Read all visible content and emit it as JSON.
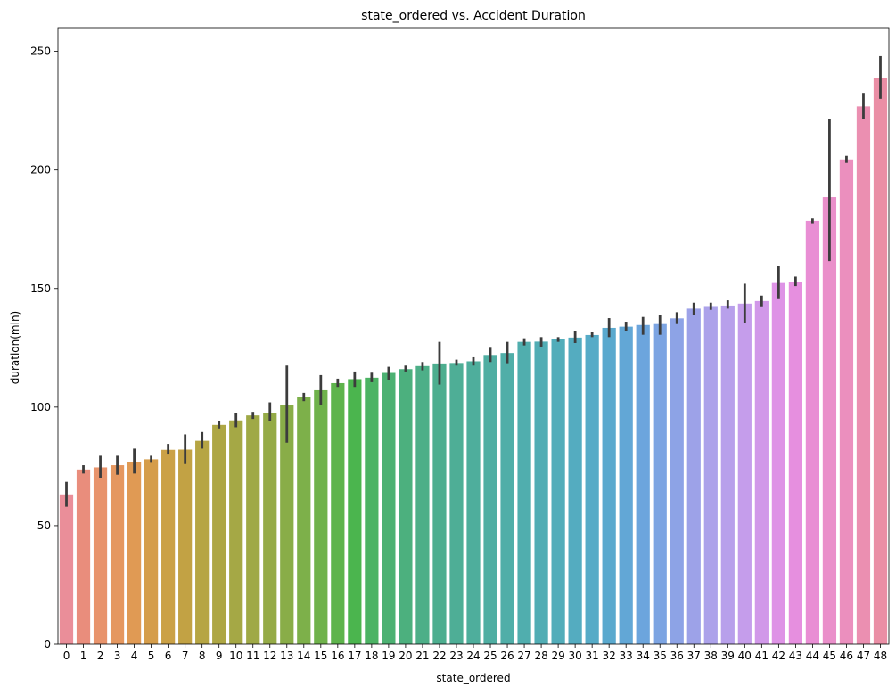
{
  "chart_data": {
    "type": "bar",
    "title": "state_ordered vs. Accident Duration",
    "xlabel": "state_ordered",
    "ylabel": "duration(min)",
    "ylim": [
      0,
      260
    ],
    "yticks": [
      0,
      50,
      100,
      150,
      200,
      250
    ],
    "grid": false,
    "legend": "none",
    "categories": [
      "0",
      "1",
      "2",
      "3",
      "4",
      "5",
      "6",
      "7",
      "8",
      "9",
      "10",
      "11",
      "12",
      "13",
      "14",
      "15",
      "16",
      "17",
      "18",
      "19",
      "20",
      "21",
      "22",
      "23",
      "24",
      "25",
      "26",
      "27",
      "28",
      "29",
      "30",
      "31",
      "32",
      "33",
      "34",
      "35",
      "36",
      "37",
      "38",
      "39",
      "40",
      "41",
      "42",
      "43",
      "44",
      "45",
      "46",
      "47",
      "48"
    ],
    "values": [
      63.2,
      73.7,
      74.6,
      75.5,
      77.0,
      78.0,
      82.0,
      82.1,
      85.8,
      92.5,
      94.4,
      96.5,
      97.6,
      100.9,
      104.2,
      107.1,
      110.1,
      111.8,
      112.4,
      114.4,
      116.0,
      117.3,
      118.4,
      118.6,
      119.3,
      122.0,
      122.8,
      127.5,
      127.6,
      128.6,
      129.3,
      130.4,
      133.4,
      133.9,
      134.6,
      135.0,
      137.4,
      141.5,
      142.6,
      142.8,
      143.6,
      144.7,
      152.3,
      152.7,
      178.5,
      188.6,
      204.1,
      226.8,
      238.9
    ],
    "error_low": [
      58.0,
      72.0,
      70.0,
      71.5,
      72.0,
      76.5,
      80.0,
      76.0,
      82.5,
      91.0,
      91.5,
      95.0,
      94.0,
      85.0,
      102.5,
      101.0,
      108.5,
      108.5,
      110.5,
      111.5,
      115.0,
      115.5,
      109.5,
      117.5,
      117.5,
      119.0,
      118.5,
      126.0,
      125.5,
      127.5,
      127.0,
      129.5,
      129.5,
      132.0,
      130.5,
      130.5,
      135.0,
      139.0,
      141.0,
      141.5,
      135.5,
      142.5,
      145.5,
      151.0,
      177.5,
      161.5,
      203.0,
      221.5,
      230.0
    ],
    "error_high": [
      68.5,
      75.5,
      79.5,
      79.5,
      82.5,
      79.5,
      84.5,
      88.5,
      89.5,
      94.0,
      97.5,
      98.0,
      102.0,
      117.5,
      106.0,
      113.5,
      112.0,
      115.0,
      114.5,
      117.0,
      117.5,
      119.0,
      127.5,
      120.0,
      121.0,
      125.0,
      127.5,
      129.0,
      129.5,
      129.5,
      132.0,
      131.5,
      137.5,
      136.0,
      138.0,
      139.0,
      140.0,
      144.0,
      144.0,
      145.0,
      152.0,
      147.0,
      159.5,
      155.0,
      179.5,
      221.5,
      206.0,
      232.5,
      248.0
    ],
    "colors": [
      "#ea8e99",
      "#e98d7c",
      "#e8936b",
      "#e5975f",
      "#e09a54",
      "#d59d4a",
      "#cba146",
      "#c2a244",
      "#b6a543",
      "#aea744",
      "#a5a845",
      "#9fa946",
      "#95ab47",
      "#89ad48",
      "#7db04a",
      "#6fb24b",
      "#5eb44c",
      "#4bb54e",
      "#4cb364",
      "#4cb172",
      "#4cb07e",
      "#4daf88",
      "#4dae8f",
      "#4eae96",
      "#4eae9c",
      "#4faea2",
      "#50aea8",
      "#50aeae",
      "#51adb4",
      "#52adba",
      "#54acc0",
      "#56abc7",
      "#5aa9ce",
      "#62a7d6",
      "#6ca5dd",
      "#7ca4e2",
      "#8da3e6",
      "#9da2e8",
      "#aca2ea",
      "#b8a0eb",
      "#c59deb",
      "#d198e9",
      "#de93e6",
      "#e68fdf",
      "#e98ed4",
      "#ea8fca",
      "#eb8fbe",
      "#eb8fb1",
      "#ea8ea5"
    ]
  }
}
